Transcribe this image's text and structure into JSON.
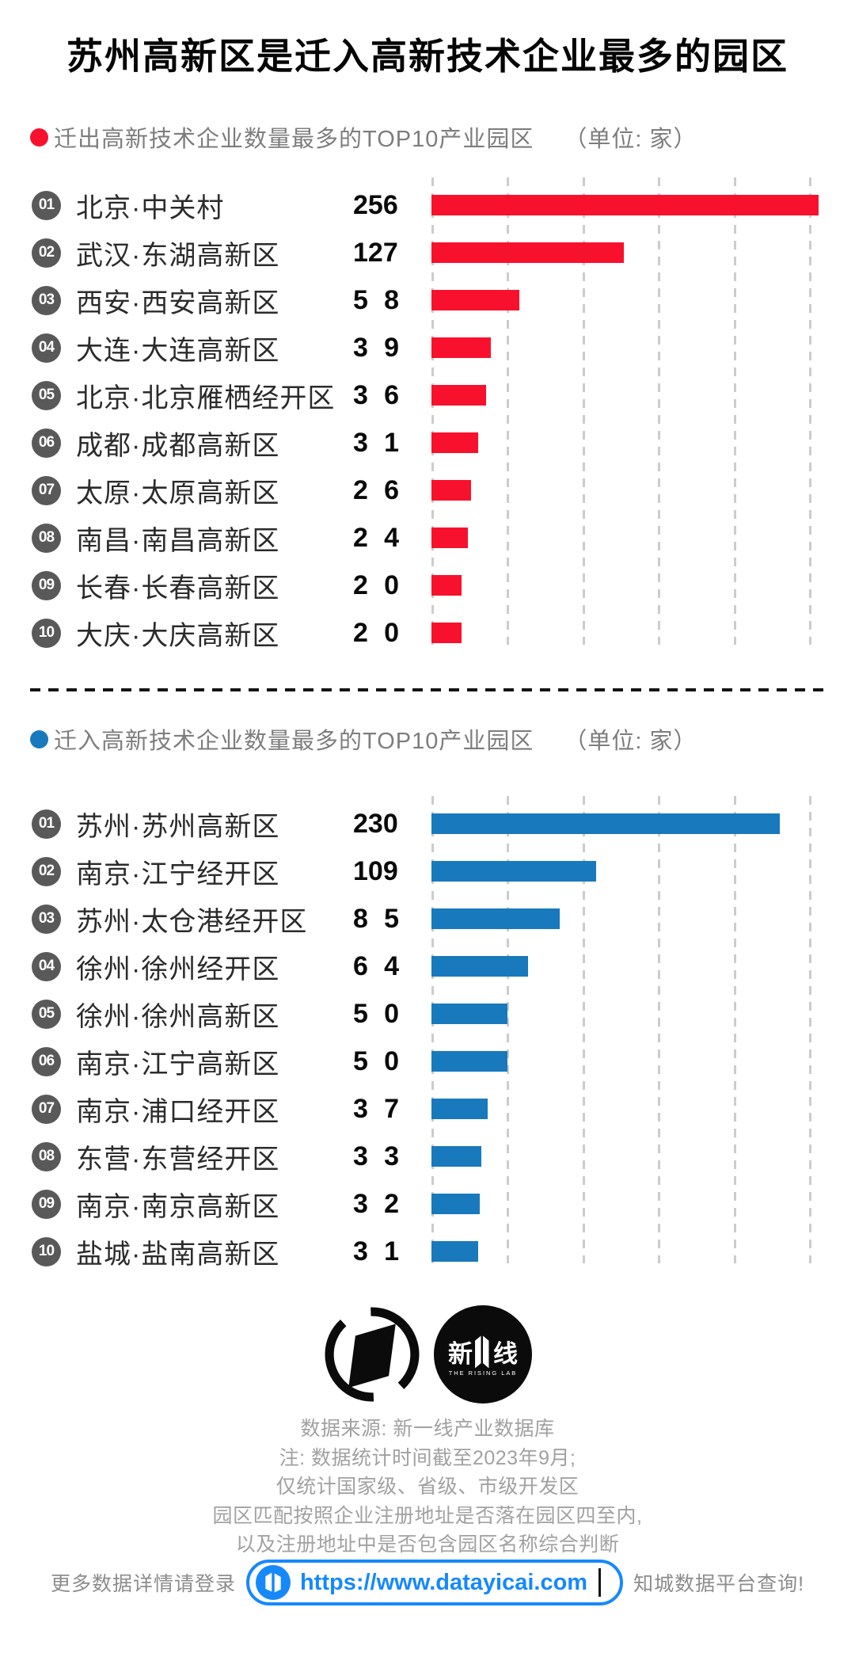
{
  "page": {
    "title": "苏州高新区是迁入高新技术企业最多的园区",
    "background": "#ffffff"
  },
  "charts": [
    {
      "header": "迁出高新技术企业数量最多的TOP10产业园区",
      "unit": "（单位: 家）",
      "bar_color": "#F8112D",
      "dot_color": "#F8112D",
      "axis_max": 260,
      "rows": [
        {
          "rank": "01",
          "label": "北京·中关村",
          "value": 256,
          "value_label": "256"
        },
        {
          "rank": "02",
          "label": "武汉·东湖高新区",
          "value": 127,
          "value_label": "127"
        },
        {
          "rank": "03",
          "label": "西安·西安高新区",
          "value": 58,
          "value_label": "5 8"
        },
        {
          "rank": "04",
          "label": "大连·大连高新区",
          "value": 39,
          "value_label": "3 9"
        },
        {
          "rank": "05",
          "label": "北京·北京雁栖经开区",
          "value": 36,
          "value_label": "3 6"
        },
        {
          "rank": "06",
          "label": "成都·成都高新区",
          "value": 31,
          "value_label": "3 1"
        },
        {
          "rank": "07",
          "label": "太原·太原高新区",
          "value": 26,
          "value_label": "2 6"
        },
        {
          "rank": "08",
          "label": "南昌·南昌高新区",
          "value": 24,
          "value_label": "2 4"
        },
        {
          "rank": "09",
          "label": "长春·长春高新区",
          "value": 20,
          "value_label": "2 0"
        },
        {
          "rank": "10",
          "label": "大庆·大庆高新区",
          "value": 20,
          "value_label": "2 0"
        }
      ]
    },
    {
      "header": "迁入高新技术企业数量最多的TOP10产业园区",
      "unit": "（单位: 家）",
      "bar_color": "#1879BD",
      "dot_color": "#1879BD",
      "axis_max": 260,
      "rows": [
        {
          "rank": "01",
          "label": "苏州·苏州高新区",
          "value": 230,
          "value_label": "230"
        },
        {
          "rank": "02",
          "label": "南京·江宁经开区",
          "value": 109,
          "value_label": "109"
        },
        {
          "rank": "03",
          "label": "苏州·太仓港经开区",
          "value": 85,
          "value_label": "8 5"
        },
        {
          "rank": "04",
          "label": "徐州·徐州经开区",
          "value": 64,
          "value_label": "6 4"
        },
        {
          "rank": "05",
          "label": "徐州·徐州高新区",
          "value": 50,
          "value_label": "5 0"
        },
        {
          "rank": "06",
          "label": "南京·江宁高新区",
          "value": 50,
          "value_label": "5 0"
        },
        {
          "rank": "07",
          "label": "南京·浦口经开区",
          "value": 37,
          "value_label": "3 7"
        },
        {
          "rank": "08",
          "label": "东营·东营经开区",
          "value": 33,
          "value_label": "3 3"
        },
        {
          "rank": "09",
          "label": "南京·南京高新区",
          "value": 32,
          "value_label": "3 2"
        },
        {
          "rank": "10",
          "label": "盐城·盐南高新区",
          "value": 31,
          "value_label": "3 1"
        }
      ]
    }
  ],
  "chart_data": [
    {
      "type": "bar",
      "orientation": "horizontal",
      "title": "迁出高新技术企业数量最多的TOP10产业园区",
      "unit": "家",
      "categories": [
        "北京·中关村",
        "武汉·东湖高新区",
        "西安·西安高新区",
        "大连·大连高新区",
        "北京·北京雁栖经开区",
        "成都·成都高新区",
        "太原·太原高新区",
        "南昌·南昌高新区",
        "长春·长春高新区",
        "大庆·大庆高新区"
      ],
      "values": [
        256,
        127,
        58,
        39,
        36,
        31,
        26,
        24,
        20,
        20
      ],
      "xlim": [
        0,
        260
      ],
      "gridline_interval": 50,
      "grid": "dashed-vertical",
      "bar_color": "#F8112D",
      "legend_position": "none"
    },
    {
      "type": "bar",
      "orientation": "horizontal",
      "title": "迁入高新技术企业数量最多的TOP10产业园区",
      "unit": "家",
      "categories": [
        "苏州·苏州高新区",
        "南京·江宁经开区",
        "苏州·太仓港经开区",
        "徐州·徐州经开区",
        "徐州·徐州高新区",
        "南京·江宁高新区",
        "南京·浦口经开区",
        "东营·东营经开区",
        "南京·南京高新区",
        "盐城·盐南高新区"
      ],
      "values": [
        230,
        109,
        85,
        64,
        50,
        50,
        37,
        33,
        32,
        31
      ],
      "xlim": [
        0,
        260
      ],
      "gridline_interval": 50,
      "grid": "dashed-vertical",
      "bar_color": "#1879BD",
      "legend_position": "none"
    }
  ],
  "footer": {
    "rising_lab_logo": {
      "left_char": "新",
      "right_char": "线",
      "tagline": "THE RISING LAB"
    },
    "source_lines": [
      "数据来源: 新一线产业数据库",
      "注: 数据统计时间截至2023年9月;",
      "仅统计国家级、省级、市级开发区",
      "园区匹配按照企业注册地址是否落在园区四至内,",
      "以及注册地址中是否包含园区名称综合判断"
    ],
    "cta": {
      "prefix": "更多数据详情请登录",
      "url": "https://www.datayicai.com",
      "suffix": "知城数据平台查询!"
    }
  },
  "colors": {
    "accent_red": "#F8112D",
    "accent_blue": "#1879BD",
    "link_blue": "#1689FA",
    "badge_gray": "#595959",
    "gridline": "#cccccc"
  }
}
